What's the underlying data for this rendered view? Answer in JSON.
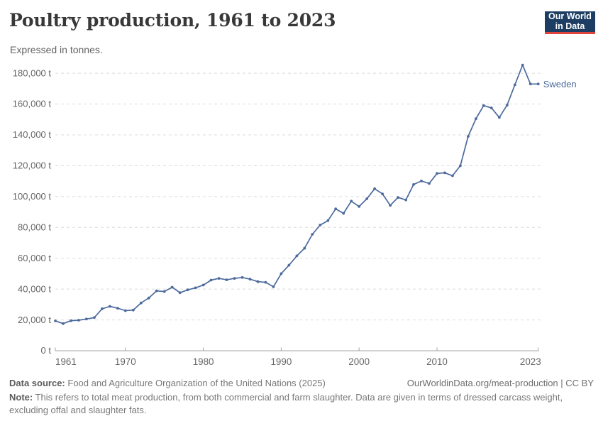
{
  "header": {
    "title": "Poultry production, 1961 to 2023",
    "subtitle": "Expressed in tonnes.",
    "logo": {
      "line1": "Our World",
      "line2": "in Data"
    }
  },
  "chart_data": {
    "type": "line",
    "title": "Poultry production, 1961 to 2023",
    "unit": "t",
    "entity": "Sweden",
    "legend_position": "end-of-line label",
    "grid": "horizontal dashed",
    "x": [
      1961,
      1962,
      1963,
      1964,
      1965,
      1966,
      1967,
      1968,
      1969,
      1970,
      1971,
      1972,
      1973,
      1974,
      1975,
      1976,
      1977,
      1978,
      1979,
      1980,
      1981,
      1982,
      1983,
      1984,
      1985,
      1986,
      1987,
      1988,
      1989,
      1990,
      1991,
      1992,
      1993,
      1994,
      1995,
      1996,
      1997,
      1998,
      1999,
      2000,
      2001,
      2002,
      2003,
      2004,
      2005,
      2006,
      2007,
      2008,
      2009,
      2010,
      2011,
      2012,
      2013,
      2014,
      2015,
      2016,
      2017,
      2018,
      2019,
      2020,
      2021,
      2022,
      2023
    ],
    "series": [
      {
        "name": "Sweden",
        "values": [
          19400,
          17600,
          19500,
          19800,
          20600,
          21500,
          27200,
          28800,
          27600,
          26000,
          26400,
          31000,
          34200,
          38800,
          38400,
          41200,
          37600,
          39500,
          40800,
          42600,
          45800,
          46900,
          46000,
          46900,
          47500,
          46400,
          44800,
          44400,
          41500,
          50000,
          55500,
          61500,
          66500,
          75500,
          81500,
          84400,
          92000,
          89100,
          97000,
          93500,
          98600,
          105100,
          101700,
          94300,
          99400,
          97800,
          107800,
          110100,
          108500,
          115000,
          115400,
          113500,
          120000,
          139000,
          150500,
          159000,
          157500,
          151300,
          159300,
          172500,
          185300,
          173000,
          173000
        ]
      }
    ],
    "xlabel": "",
    "ylabel": "",
    "ylim": [
      0,
      190000
    ],
    "y_ticks": [
      0,
      20000,
      40000,
      60000,
      80000,
      100000,
      120000,
      140000,
      160000,
      180000
    ],
    "y_tick_suffix": " t",
    "x_ticks": [
      1961,
      1970,
      1980,
      1990,
      2000,
      2010,
      2023
    ],
    "line_color": "#4c6a9c"
  },
  "footer": {
    "source_label": "Data source:",
    "source_text": "Food and Agriculture Organization of the United Nations (2025)",
    "link_text": "OurWorldinData.org/meat-production | CC BY",
    "note_label": "Note:",
    "note_text": "This refers to total meat production, from both commercial and farm slaughter. Data are given in terms of dressed carcass weight, excluding offal and slaughter fats."
  },
  "colors": {
    "line": "#4c6a9c",
    "grid": "#dcdcdc",
    "axis": "#a3a3a3",
    "tick_text": "#666666",
    "logo_bg": "#1d3d63",
    "logo_red": "#e0433a"
  }
}
